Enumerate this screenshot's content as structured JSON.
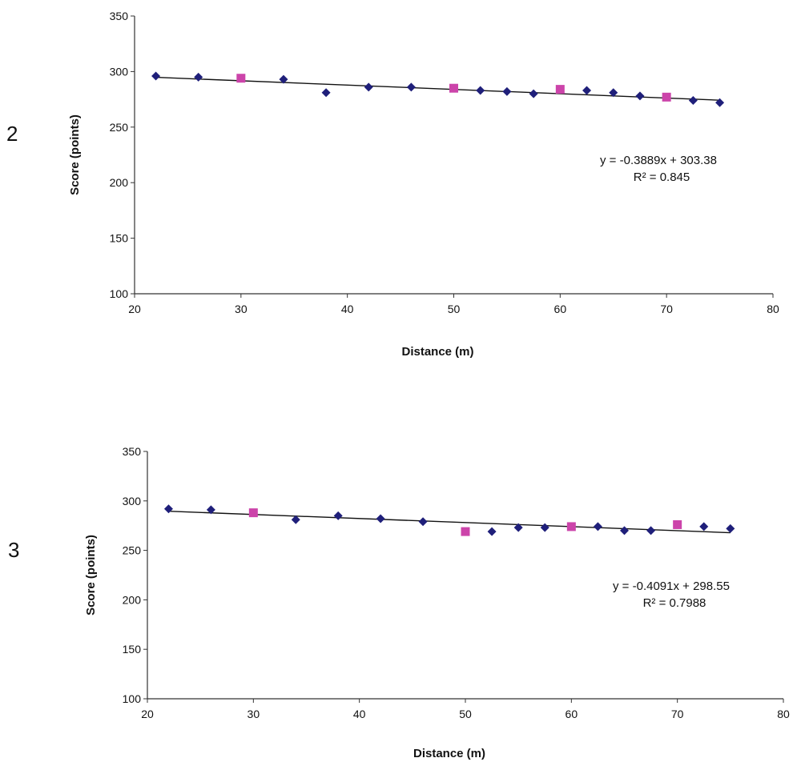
{
  "chart_data": [
    {
      "type": "scatter",
      "panel_label": "2",
      "title": "",
      "xlabel": "Distance (m)",
      "ylabel": "Score (points)",
      "xlim": [
        20,
        80
      ],
      "ylim": [
        100,
        350
      ],
      "xticks": [
        20,
        30,
        40,
        50,
        60,
        70,
        80
      ],
      "yticks": [
        100,
        150,
        200,
        250,
        300,
        350
      ],
      "series": [
        {
          "name": "diamonds",
          "color": "#1F1F7A",
          "marker": "diamond",
          "x": [
            22,
            26,
            34,
            38,
            42,
            46,
            52.5,
            55,
            57.5,
            62.5,
            65,
            67.5,
            72.5,
            75
          ],
          "y": [
            296,
            295,
            293,
            281,
            286,
            286,
            283,
            282,
            280,
            283,
            281,
            278,
            274,
            272
          ]
        },
        {
          "name": "squares",
          "color": "#CC44AA",
          "marker": "square",
          "x": [
            30,
            50,
            60,
            70
          ],
          "y": [
            294,
            285,
            284,
            277
          ]
        }
      ],
      "trendline": {
        "slope": -0.3889,
        "intercept": 303.38,
        "x_range": [
          22,
          75
        ]
      },
      "annotation": {
        "equation": "y = -0.3889x + 303.38",
        "r2": "R² = 0.845"
      }
    },
    {
      "type": "scatter",
      "panel_label": "3",
      "title": "",
      "xlabel": "Distance (m)",
      "ylabel": "Score (points)",
      "xlim": [
        20,
        80
      ],
      "ylim": [
        100,
        350
      ],
      "xticks": [
        20,
        30,
        40,
        50,
        60,
        70,
        80
      ],
      "yticks": [
        100,
        150,
        200,
        250,
        300,
        350
      ],
      "series": [
        {
          "name": "diamonds",
          "color": "#1F1F7A",
          "marker": "diamond",
          "x": [
            22,
            26,
            34,
            38,
            42,
            46,
            52.5,
            55,
            57.5,
            62.5,
            65,
            67.5,
            72.5,
            75
          ],
          "y": [
            292,
            291,
            281,
            285,
            282,
            279,
            269,
            273,
            273,
            274,
            270,
            270,
            274,
            272
          ]
        },
        {
          "name": "squares",
          "color": "#CC44AA",
          "marker": "square",
          "x": [
            30,
            50,
            60,
            70
          ],
          "y": [
            288,
            269,
            274,
            276
          ]
        }
      ],
      "trendline": {
        "slope": -0.4091,
        "intercept": 298.55,
        "x_range": [
          22,
          75
        ]
      },
      "annotation": {
        "equation": "y = -0.4091x + 298.55",
        "r2": "R² = 0.7988"
      }
    }
  ]
}
